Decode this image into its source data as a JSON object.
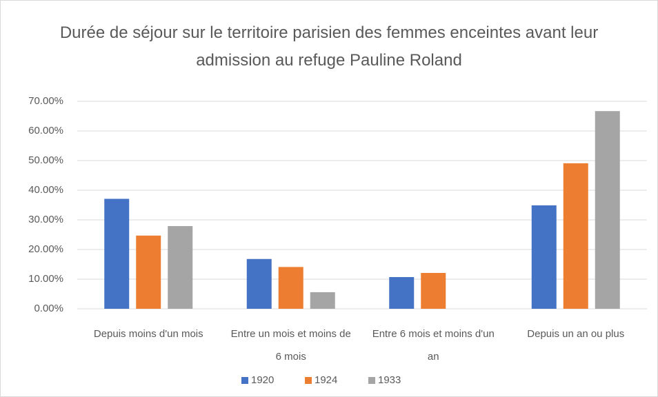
{
  "chart_data": {
    "type": "bar",
    "title": "Durée de séjour sur le territoire  parisien des femmes enceintes avant leur admission au refuge Pauline Roland",
    "categories": [
      "Depuis moins d'un mois",
      "Entre un mois et moins de 6 mois",
      "Entre 6 mois et moins d'un an",
      "Depuis un an ou plus"
    ],
    "series": [
      {
        "name": "1920",
        "color": "#4472c4",
        "values": [
          37.1,
          16.8,
          10.7,
          34.9
        ]
      },
      {
        "name": "1924",
        "color": "#ed7d31",
        "values": [
          24.7,
          14.1,
          12.1,
          49.1
        ]
      },
      {
        "name": "1933",
        "color": "#a5a5a5",
        "values": [
          27.9,
          5.6,
          0,
          66.7
        ]
      }
    ],
    "ylim": [
      0,
      70
    ],
    "yticks": [
      {
        "value": 0,
        "label": "0.00%"
      },
      {
        "value": 10,
        "label": "10.00%"
      },
      {
        "value": 20,
        "label": "20.00%"
      },
      {
        "value": 30,
        "label": "30.00%"
      },
      {
        "value": 40,
        "label": "40.00%"
      },
      {
        "value": 50,
        "label": "50.00%"
      },
      {
        "value": 60,
        "label": "60.00%"
      },
      {
        "value": 70,
        "label": "70.00%"
      }
    ],
    "grid": true,
    "legend": "bottom"
  }
}
